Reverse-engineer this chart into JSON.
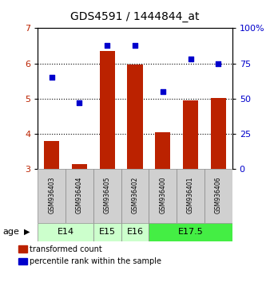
{
  "title": "GDS4591 / 1444844_at",
  "samples": [
    "GSM936403",
    "GSM936404",
    "GSM936405",
    "GSM936402",
    "GSM936400",
    "GSM936401",
    "GSM936406"
  ],
  "bar_values": [
    3.8,
    3.15,
    6.35,
    5.98,
    4.05,
    4.95,
    5.02
  ],
  "scatter_values_pct": [
    65,
    47,
    88,
    88,
    55,
    78,
    75
  ],
  "bar_color": "#bb2200",
  "scatter_color": "#0000cc",
  "ylim_left": [
    3,
    7
  ],
  "ylim_right": [
    0,
    100
  ],
  "yticks_left": [
    3,
    4,
    5,
    6,
    7
  ],
  "yticks_right": [
    0,
    25,
    50,
    75,
    100
  ],
  "ytick_labels_right": [
    "0",
    "25",
    "50",
    "75",
    "100%"
  ],
  "legend_bar_label": "transformed count",
  "legend_scatter_label": "percentile rank within the sample",
  "age_group_defs": [
    {
      "label": "E14",
      "indices": [
        0,
        1
      ],
      "color": "#ccffcc"
    },
    {
      "label": "E15",
      "indices": [
        2
      ],
      "color": "#ccffcc"
    },
    {
      "label": "E16",
      "indices": [
        3
      ],
      "color": "#ccffcc"
    },
    {
      "label": "E17.5",
      "indices": [
        4,
        5,
        6
      ],
      "color": "#44ee44"
    }
  ]
}
